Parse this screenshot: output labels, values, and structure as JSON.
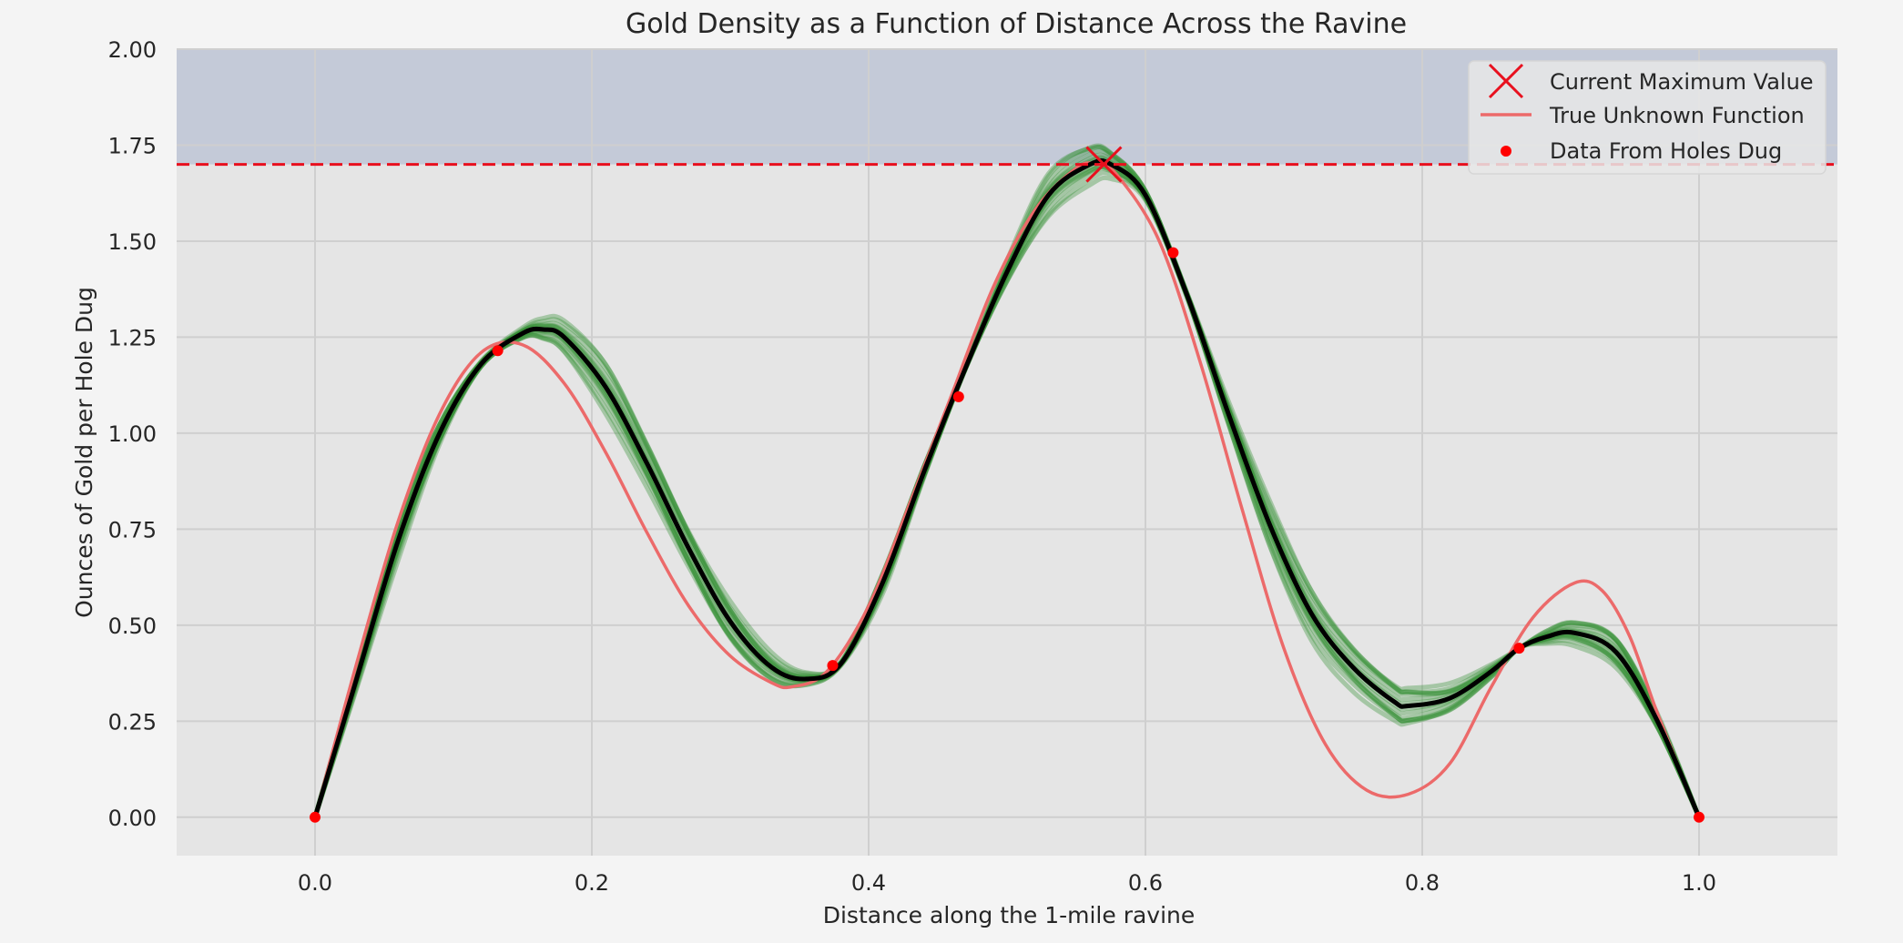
{
  "chart_data": {
    "type": "line",
    "title": "Gold Density as a Function of Distance Across the Ravine",
    "xlabel": "Distance along the 1-mile ravine",
    "ylabel": "Ounces of Gold per Hole Dug",
    "xlim": [
      -0.1,
      1.1
    ],
    "ylim": [
      -0.1,
      2.0
    ],
    "xticks": [
      "0.0",
      "0.2",
      "0.4",
      "0.6",
      "0.8",
      "1.0"
    ],
    "yticks": [
      "0.00",
      "0.25",
      "0.50",
      "0.75",
      "1.00",
      "1.25",
      "1.50",
      "1.75",
      "2.00"
    ],
    "grid": true,
    "legend_position": "top-right",
    "legend": [
      {
        "label": "Current Maximum Value",
        "marker": "x"
      },
      {
        "label": "True Unknown Function",
        "marker": "line"
      },
      {
        "label": "Data From Holes Dug",
        "marker": "dot"
      }
    ],
    "current_max_value": 1.7,
    "current_max_x": 0.57,
    "shaded_region": {
      "from": 1.7,
      "to": 2.0
    },
    "true_function": {
      "x": [
        0.0,
        0.03,
        0.06,
        0.09,
        0.12,
        0.15,
        0.18,
        0.21,
        0.24,
        0.27,
        0.3,
        0.33,
        0.345,
        0.37,
        0.4,
        0.43,
        0.46,
        0.49,
        0.52,
        0.55,
        0.565,
        0.58,
        0.61,
        0.64,
        0.67,
        0.7,
        0.73,
        0.76,
        0.79,
        0.82,
        0.85,
        0.88,
        0.91,
        0.93,
        0.95,
        0.97,
        1.0
      ],
      "y": [
        0.0,
        0.4,
        0.77,
        1.05,
        1.21,
        1.23,
        1.13,
        0.95,
        0.74,
        0.55,
        0.42,
        0.35,
        0.34,
        0.38,
        0.55,
        0.82,
        1.1,
        1.38,
        1.58,
        1.69,
        1.7,
        1.67,
        1.5,
        1.18,
        0.8,
        0.44,
        0.19,
        0.07,
        0.06,
        0.14,
        0.34,
        0.52,
        0.61,
        0.59,
        0.47,
        0.27,
        0.0
      ]
    },
    "gp_mean": {
      "x": [
        0.0,
        0.03,
        0.06,
        0.09,
        0.12,
        0.15,
        0.165,
        0.18,
        0.21,
        0.24,
        0.27,
        0.3,
        0.33,
        0.355,
        0.38,
        0.41,
        0.44,
        0.47,
        0.5,
        0.53,
        0.56,
        0.575,
        0.6,
        0.63,
        0.66,
        0.69,
        0.72,
        0.75,
        0.78,
        0.79,
        0.82,
        0.85,
        0.87,
        0.89,
        0.91,
        0.94,
        0.97,
        1.0
      ],
      "y": [
        0.0,
        0.36,
        0.72,
        1.0,
        1.18,
        1.26,
        1.27,
        1.25,
        1.12,
        0.92,
        0.7,
        0.51,
        0.39,
        0.36,
        0.4,
        0.61,
        0.9,
        1.17,
        1.42,
        1.62,
        1.7,
        1.7,
        1.62,
        1.36,
        1.05,
        0.76,
        0.53,
        0.39,
        0.3,
        0.29,
        0.31,
        0.38,
        0.44,
        0.47,
        0.48,
        0.43,
        0.25,
        0.0
      ]
    },
    "gp_samples_count": 15,
    "data_points": {
      "x": [
        0.0,
        0.132,
        0.374,
        0.465,
        0.62,
        0.87,
        1.0
      ],
      "y": [
        0.0,
        1.215,
        0.395,
        1.095,
        1.47,
        0.44,
        0.0
      ]
    },
    "colors": {
      "plot_bg": "#e5e5e5",
      "figure_bg": "#f4f4f4",
      "shaded": "#c4cad8",
      "grid": "#cfcfcf",
      "true_function": "#ec6a6a",
      "gp_mean": "#000000",
      "gp_samples": "#2e8b2e",
      "data": "#ff0000",
      "max_line": "#e8101e"
    }
  }
}
